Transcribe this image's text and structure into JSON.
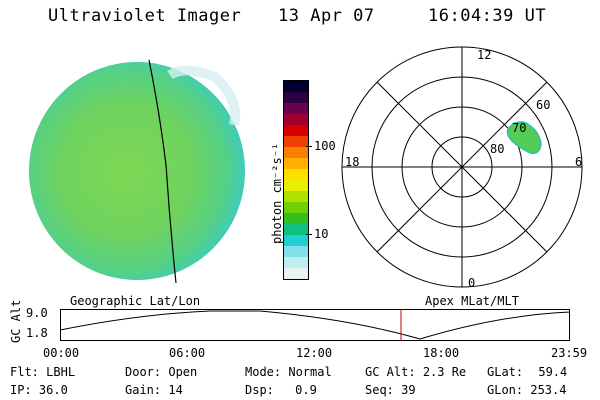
{
  "header": {
    "instrument": "Ultraviolet Imager",
    "date": "13 Apr 07",
    "time": "16:04:39 UT"
  },
  "colorbar": {
    "unit_label": "photon cm⁻²s⁻¹",
    "ticks": [
      "100",
      "10"
    ],
    "colors": [
      "#000033",
      "#2b0040",
      "#6a0050",
      "#a00030",
      "#d80000",
      "#f04000",
      "#f88000",
      "#ffb000",
      "#ffe000",
      "#e8f000",
      "#b0e000",
      "#70d000",
      "#30c020",
      "#10c080",
      "#20d0d0",
      "#80e0e8",
      "#c0eef0",
      "#e8f4f4"
    ]
  },
  "polar_plot": {
    "hour_labels": {
      "top": "12",
      "left": "18",
      "right": "6",
      "bottom": "0"
    },
    "lat_labels": [
      "60",
      "70",
      "80"
    ]
  },
  "timeline": {
    "left_title": "Geographic Lat/Lon",
    "right_title": "Apex MLat/MLT",
    "ylabel": "GC Alt",
    "y_ticks": [
      "9.0",
      "1.8"
    ],
    "x_ticks": [
      "00:00",
      "06:00",
      "12:00",
      "18:00",
      "23:59"
    ]
  },
  "info": {
    "flt_label": "Flt:",
    "flt_value": "LBHL",
    "ip_label": "IP:",
    "ip_value": "36.0",
    "door_label": "Door:",
    "door_value": "Open",
    "gain_label": "Gain:",
    "gain_value": "14",
    "mode_label": "Mode:",
    "mode_value": "Normal",
    "dsp_label": "Dsp:",
    "dsp_value": "0.9",
    "gcalt_label": "GC Alt:",
    "gcalt_value": "2.3 Re",
    "seq_label": "Seq:",
    "seq_value": "39",
    "glat_label": "GLat:",
    "glat_value": "59.4",
    "glon_label": "GLon:",
    "glon_value": "253.4"
  }
}
